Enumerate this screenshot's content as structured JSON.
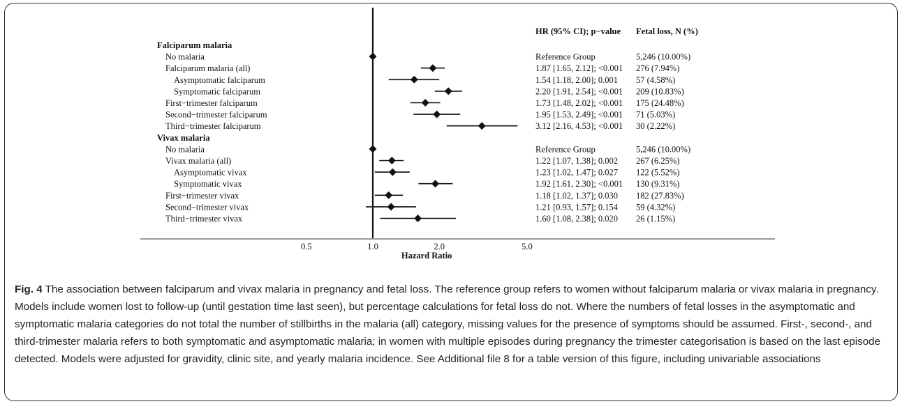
{
  "caption": {
    "label": "Fig. 4",
    "text": " The association between falciparum and vivax malaria in pregnancy and fetal loss. The reference group refers to women without falciparum malaria or vivax malaria in pregnancy. Models include women lost to follow-up (until gestation time last seen), but percentage calculations for fetal loss do not. Where the numbers of fetal losses in the asymptomatic and symptomatic malaria categories do not total the number of stillbirths in the malaria (all) category, missing values for the presence of symptoms should be assumed. First-, second-, and third-trimester malaria refers to both symptomatic and asymptomatic malaria; in women with multiple episodes during pregnancy the trimester categorisation is based on the last episode detected. Models were adjusted for gravidity, clinic site, and yearly malaria incidence. See Additional file 8 for a table version of this figure, including univariable associations"
  },
  "chart_data": {
    "type": "forest",
    "xlabel": "Hazard Ratio",
    "xscale": "log",
    "xticks": [
      0.5,
      1.0,
      2.0,
      5.0
    ],
    "xtick_labels": [
      "0.5",
      "1.0",
      "2.0",
      "5.0"
    ],
    "reference_line": 1.0,
    "column_headers": [
      "HR (95% CI); p−value",
      "Fetal loss, N (%)"
    ],
    "rows": [
      {
        "kind": "group",
        "label": "Falciparum malaria"
      },
      {
        "kind": "row",
        "indent": 1,
        "label": "No malaria",
        "hr": 1.0,
        "lo": null,
        "hi": null,
        "hr_text": "Reference Group",
        "fetal_text": "5,246 (10.00%)"
      },
      {
        "kind": "row",
        "indent": 1,
        "label": "Falciparum malaria (all)",
        "hr": 1.87,
        "lo": 1.65,
        "hi": 2.12,
        "hr_text": "1.87 [1.65, 2.12]; <0.001",
        "fetal_text": "276 (7.94%)"
      },
      {
        "kind": "row",
        "indent": 2,
        "label": "Asymptomatic falciparum",
        "hr": 1.54,
        "lo": 1.18,
        "hi": 2.0,
        "hr_text": "1.54 [1.18, 2.00]; 0.001",
        "fetal_text": "57 (4.58%)"
      },
      {
        "kind": "row",
        "indent": 2,
        "label": "Symptomatic falciparum",
        "hr": 2.2,
        "lo": 1.91,
        "hi": 2.54,
        "hr_text": "2.20 [1.91, 2.54]; <0.001",
        "fetal_text": "209 (10.83%)"
      },
      {
        "kind": "row",
        "indent": 1,
        "label": "First−trimester falciparum",
        "hr": 1.73,
        "lo": 1.48,
        "hi": 2.02,
        "hr_text": "1.73 [1.48, 2.02]; <0.001",
        "fetal_text": "175 (24.48%)"
      },
      {
        "kind": "row",
        "indent": 1,
        "label": "Second−trimester falciparum",
        "hr": 1.95,
        "lo": 1.53,
        "hi": 2.49,
        "hr_text": "1.95 [1.53, 2.49]; <0.001",
        "fetal_text": "71 (5.03%)"
      },
      {
        "kind": "row",
        "indent": 1,
        "label": "Third−trimester falciparum",
        "hr": 3.12,
        "lo": 2.16,
        "hi": 4.53,
        "hr_text": "3.12 [2.16, 4.53]; <0.001",
        "fetal_text": "30 (2.22%)"
      },
      {
        "kind": "group",
        "label": "Vivax malaria"
      },
      {
        "kind": "row",
        "indent": 1,
        "label": "No malaria",
        "hr": 1.0,
        "lo": null,
        "hi": null,
        "hr_text": "Reference Group",
        "fetal_text": "5,246 (10.00%)"
      },
      {
        "kind": "row",
        "indent": 1,
        "label": "Vivax malaria (all)",
        "hr": 1.22,
        "lo": 1.07,
        "hi": 1.38,
        "hr_text": "1.22 [1.07, 1.38]; 0.002",
        "fetal_text": "267 (6.25%)"
      },
      {
        "kind": "row",
        "indent": 2,
        "label": "Asymptomatic vivax",
        "hr": 1.23,
        "lo": 1.02,
        "hi": 1.47,
        "hr_text": "1.23 [1.02, 1.47]; 0.027",
        "fetal_text": "122 (5.52%)"
      },
      {
        "kind": "row",
        "indent": 2,
        "label": "Symptomatic vivax",
        "hr": 1.92,
        "lo": 1.61,
        "hi": 2.3,
        "hr_text": "1.92 [1.61, 2.30]; <0.001",
        "fetal_text": "130 (9.31%)"
      },
      {
        "kind": "row",
        "indent": 1,
        "label": "First−trimester vivax",
        "hr": 1.18,
        "lo": 1.02,
        "hi": 1.37,
        "hr_text": "1.18 [1.02, 1.37]; 0.030",
        "fetal_text": "182 (27.83%)"
      },
      {
        "kind": "row",
        "indent": 1,
        "label": "Second−trimester vivax",
        "hr": 1.21,
        "lo": 0.93,
        "hi": 1.57,
        "hr_text": "1.21 [0.93, 1.57]; 0.154",
        "fetal_text": "59 (4.32%)"
      },
      {
        "kind": "row",
        "indent": 1,
        "label": "Third−trimester vivax",
        "hr": 1.6,
        "lo": 1.08,
        "hi": 2.38,
        "hr_text": "1.60 [1.08, 2.38]; 0.020",
        "fetal_text": "26 (1.15%)"
      }
    ]
  }
}
